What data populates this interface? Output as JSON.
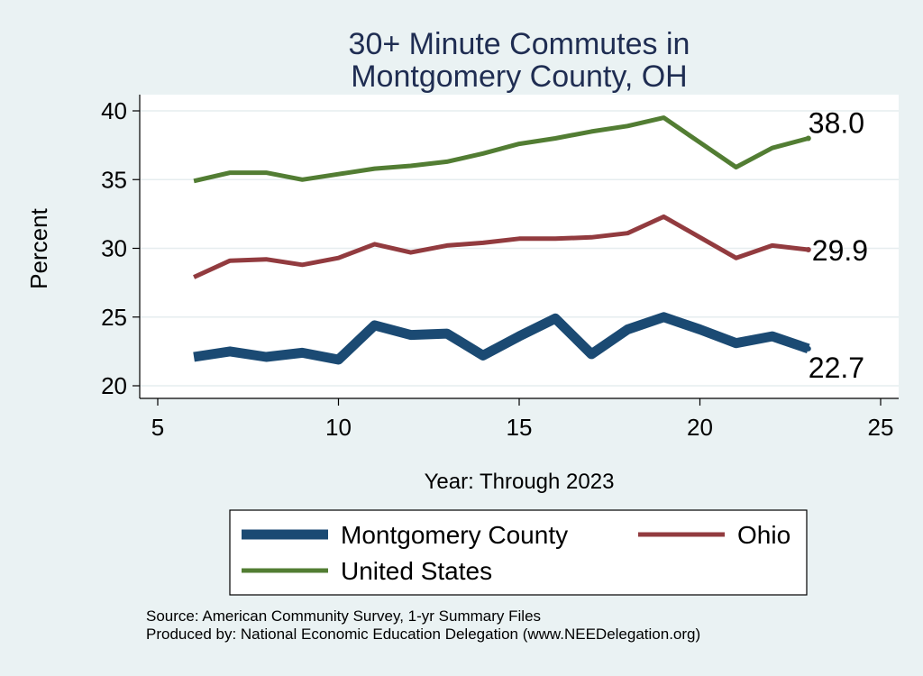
{
  "chart_data": {
    "type": "line",
    "title": [
      "30+ Minute Commutes in",
      "Montgomery County, OH"
    ],
    "xlabel": "Year: Through 2023",
    "ylabel": "Percent",
    "xlim": [
      5,
      25
    ],
    "ylim": [
      20,
      40
    ],
    "x_ticks": [
      5,
      10,
      15,
      20,
      25
    ],
    "y_ticks": [
      20,
      25,
      30,
      35,
      40
    ],
    "grid": true,
    "legend_position": "bottom",
    "series": [
      {
        "name": "Montgomery County",
        "color": "#1b4a73",
        "x": [
          6,
          7,
          8,
          9,
          10,
          11,
          12,
          13,
          14,
          15,
          16,
          17,
          18,
          19,
          20,
          21,
          22,
          23
        ],
        "values": [
          22.1,
          22.5,
          22.1,
          22.4,
          21.9,
          24.4,
          23.7,
          23.8,
          22.2,
          23.6,
          24.9,
          22.3,
          24.1,
          25.0,
          24.1,
          23.1,
          23.6,
          22.7
        ],
        "end_label": "22.7"
      },
      {
        "name": "Ohio",
        "color": "#923b3f",
        "x": [
          6,
          7,
          8,
          9,
          10,
          11,
          12,
          13,
          14,
          15,
          16,
          17,
          18,
          19,
          20,
          21,
          22,
          23
        ],
        "values": [
          27.9,
          29.1,
          29.2,
          28.8,
          29.3,
          30.3,
          29.7,
          30.2,
          30.4,
          30.7,
          30.7,
          30.8,
          31.1,
          32.3,
          30.8,
          29.3,
          30.2,
          29.9
        ],
        "end_label": "29.9"
      },
      {
        "name": "United States",
        "color": "#527d33",
        "x": [
          6,
          7,
          8,
          9,
          10,
          11,
          12,
          13,
          14,
          15,
          16,
          17,
          18,
          19,
          20,
          21,
          22,
          23
        ],
        "values": [
          34.9,
          35.5,
          35.5,
          35.0,
          35.4,
          35.8,
          36.0,
          36.3,
          36.9,
          37.6,
          38.0,
          38.5,
          38.9,
          39.5,
          37.7,
          35.9,
          37.3,
          38.0
        ],
        "end_label": "38.0"
      }
    ],
    "notes": [
      "Source: American Community Survey, 1-yr Summary Files",
      "Produced by: National Economic Education Delegation (www.NEEDelegation.org)"
    ]
  }
}
